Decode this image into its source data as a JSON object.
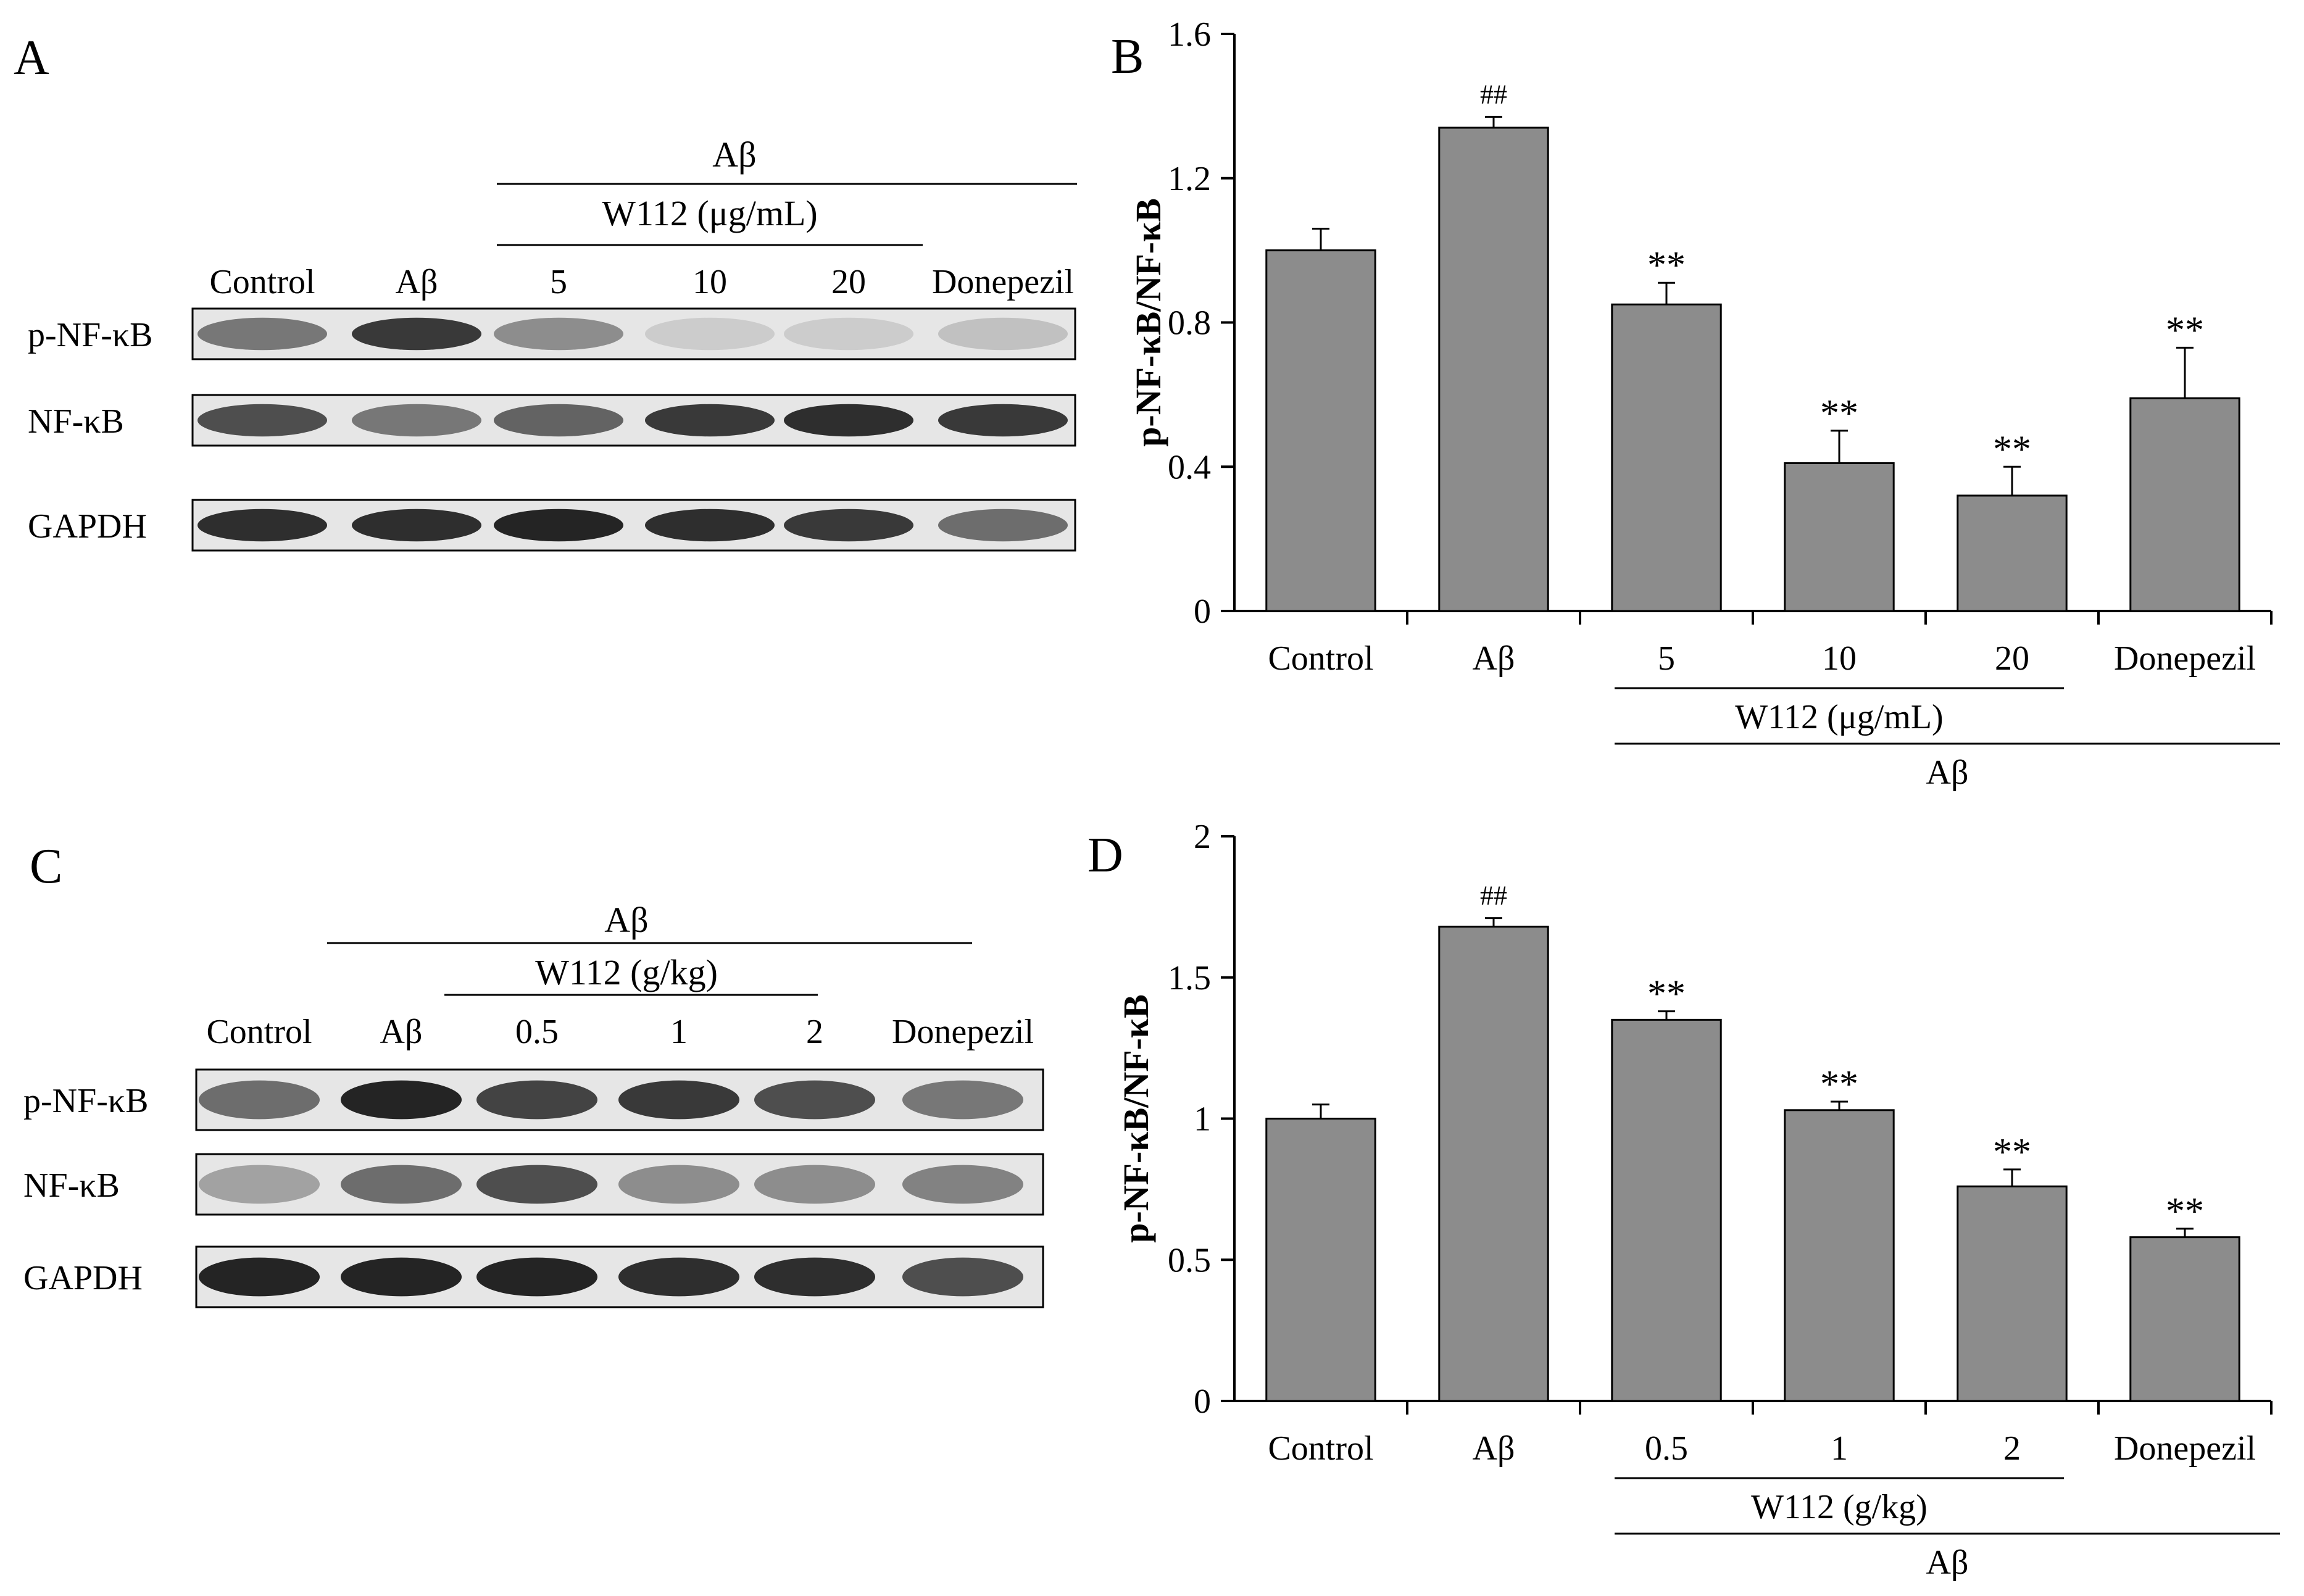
{
  "panels": {
    "A": {
      "letter": "A",
      "group_label": "Aβ",
      "subgroup_label": "W112 (μg/mL)",
      "lanes": [
        "Control",
        "Aβ",
        "5",
        "10",
        "20",
        "Donepezil"
      ],
      "rows": [
        "p-NF-κB",
        "NF-κB",
        "GAPDH"
      ]
    },
    "C": {
      "letter": "C",
      "group_label": "Aβ",
      "subgroup_label": "W112 (g/kg)",
      "lanes": [
        "Control",
        "Aβ",
        "0.5",
        "1",
        "2",
        "Donepezil"
      ],
      "rows": [
        "p-NF-κB",
        "NF-κB",
        "GAPDH"
      ]
    }
  },
  "chart_data": [
    {
      "panel": "B",
      "type": "bar",
      "ylabel": "p-NF-κB/NF-κB",
      "ylim": [
        0,
        1.6
      ],
      "yticks": [
        "0",
        "0.4",
        "0.8",
        "1.2",
        "1.6"
      ],
      "categories": [
        "Control",
        "Aβ",
        "5",
        "10",
        "20",
        "Donepezil"
      ],
      "values": [
        1.0,
        1.34,
        0.85,
        0.41,
        0.32,
        0.59
      ],
      "errors": [
        0.06,
        0.03,
        0.06,
        0.09,
        0.08,
        0.14
      ],
      "annotations": [
        "",
        "##",
        "**",
        "**",
        "**",
        "**"
      ],
      "group_label": "Aβ",
      "subgroup_label": "W112 (μg/mL)",
      "bar_color": "#8c8c8c"
    },
    {
      "panel": "D",
      "type": "bar",
      "ylabel": "p-NF-κB/NF-κB",
      "ylim": [
        0,
        2
      ],
      "yticks": [
        "0",
        "0.5",
        "1",
        "1.5",
        "2"
      ],
      "categories": [
        "Control",
        "Aβ",
        "0.5",
        "1",
        "2",
        "Donepezil"
      ],
      "values": [
        1.0,
        1.68,
        1.35,
        1.03,
        0.76,
        0.58
      ],
      "errors": [
        0.05,
        0.03,
        0.03,
        0.03,
        0.06,
        0.03
      ],
      "annotations": [
        "",
        "##",
        "**",
        "**",
        "**",
        "**"
      ],
      "group_label": "Aβ",
      "subgroup_label": "W112 (g/kg)",
      "bar_color": "#8c8c8c"
    }
  ],
  "blot_bands": {
    "A": [
      [
        0.55,
        0.85,
        0.45,
        0.15,
        0.15,
        0.2
      ],
      [
        0.75,
        0.55,
        0.65,
        0.85,
        0.9,
        0.85
      ],
      [
        0.9,
        0.9,
        0.95,
        0.9,
        0.85,
        0.6
      ]
    ],
    "C": [
      [
        0.6,
        0.95,
        0.8,
        0.85,
        0.75,
        0.55
      ],
      [
        0.35,
        0.6,
        0.75,
        0.45,
        0.45,
        0.5
      ],
      [
        0.95,
        0.95,
        0.95,
        0.9,
        0.9,
        0.75
      ]
    ]
  }
}
